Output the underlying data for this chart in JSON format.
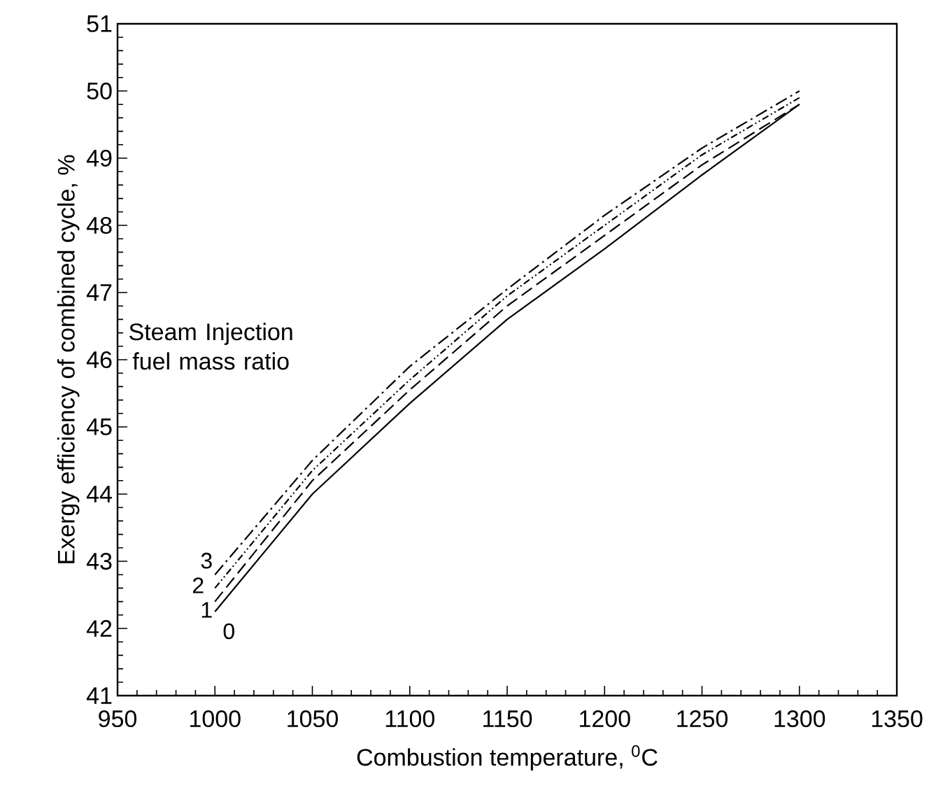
{
  "chart_data": {
    "type": "line",
    "xlabel": "Combustion temperature, $^{0}$C",
    "ylabel": "Exergy efficiency of combined cycle, %",
    "x": [
      1000,
      1050,
      1100,
      1150,
      1200,
      1250,
      1300
    ],
    "series": [
      {
        "name": "0",
        "color": "#000000",
        "line_style": "solid",
        "values": [
          42.25,
          44.0,
          45.35,
          46.6,
          47.65,
          48.75,
          49.8
        ]
      },
      {
        "name": "1",
        "color": "#000000",
        "line_style": "dashed",
        "values": [
          42.4,
          44.2,
          45.55,
          46.8,
          47.85,
          48.9,
          49.8
        ]
      },
      {
        "name": "2",
        "color": "#000000",
        "line_style": "dotted",
        "values": [
          42.6,
          44.35,
          45.7,
          46.95,
          48.0,
          49.05,
          49.9
        ]
      },
      {
        "name": "3",
        "color": "#000000",
        "line_style": "dashdot",
        "values": [
          42.8,
          44.5,
          45.9,
          47.05,
          48.15,
          49.15,
          50.0
        ]
      }
    ],
    "annotations": [
      "Steam Injection fuel mass ratio"
    ],
    "xlim": [
      950,
      1350
    ],
    "ylim": [
      41,
      51
    ],
    "xticks": [
      950,
      1000,
      1050,
      1100,
      1150,
      1200,
      1250,
      1300,
      1350
    ],
    "yticks": [
      41,
      42,
      43,
      44,
      45,
      46,
      47,
      48,
      49,
      50,
      51
    ],
    "grid": false,
    "marker": "none"
  }
}
